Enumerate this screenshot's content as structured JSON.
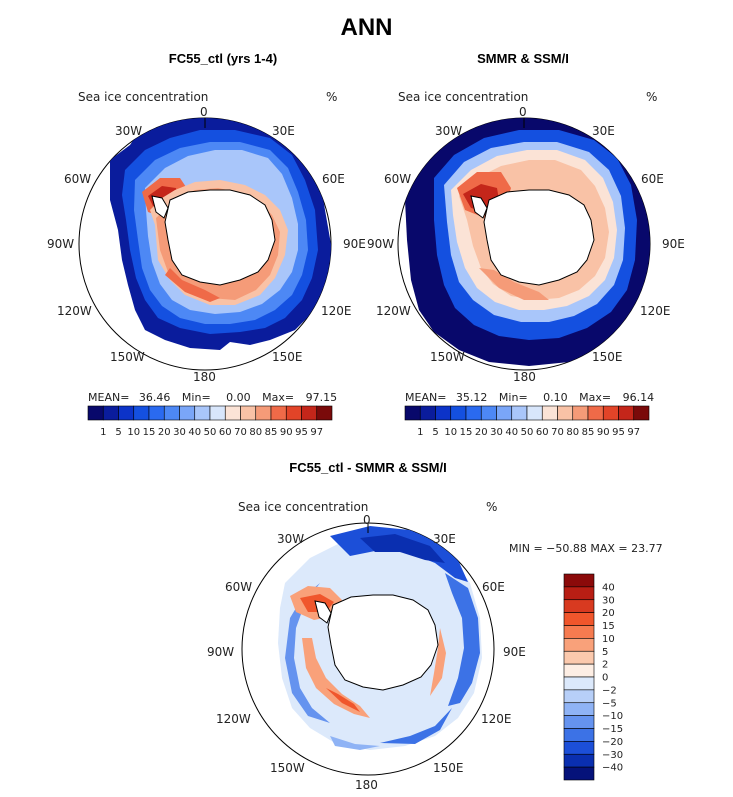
{
  "title": "ANN",
  "panels": [
    {
      "title": "FC55_ctl (yrs 1-4)",
      "variable": "Sea ice concentration",
      "units": "%",
      "stats": {
        "mean_label": "MEAN=",
        "mean": "36.46",
        "min_label": "Min=",
        "min": "0.00",
        "max_label": "Max=",
        "max": "97.15"
      }
    },
    {
      "title": "SMMR & SSM/I",
      "variable": "Sea ice concentration",
      "units": "%",
      "stats": {
        "mean_label": "MEAN=",
        "mean": "35.12",
        "min_label": "Min=",
        "min": "0.10",
        "max_label": "Max=",
        "max": "96.14"
      }
    },
    {
      "title": "FC55_ctl - SMMR & SSM/I",
      "variable": "Sea ice concentration",
      "units": "%",
      "stats_line": "MIN = −50.88 MAX =  23.77"
    }
  ],
  "lon_labels": [
    "0",
    "30E",
    "60E",
    "90E",
    "120E",
    "150E",
    "180",
    "150W",
    "120W",
    "90W",
    "60W",
    "30W"
  ],
  "colorbar_abs": {
    "ticks": [
      "1",
      "5",
      "10",
      "15",
      "20",
      "30",
      "40",
      "50",
      "60",
      "70",
      "80",
      "85",
      "90",
      "95",
      "97"
    ],
    "colors": [
      "#08086b",
      "#0a1c9c",
      "#0c33c8",
      "#1450e0",
      "#2a6af0",
      "#4d88f5",
      "#7aa6f8",
      "#a9c6fa",
      "#d8e6fb",
      "#fbe3d6",
      "#f9c2a6",
      "#f59b78",
      "#ef6a48",
      "#e24428",
      "#c4261a",
      "#7a0a0a"
    ]
  },
  "colorbar_diff": {
    "ticks": [
      "40",
      "30",
      "20",
      "15",
      "10",
      "5",
      "2",
      "0",
      "−2",
      "−5",
      "−10",
      "−15",
      "−20",
      "−30",
      "−40"
    ],
    "colors": [
      "#8b0a0a",
      "#b81e14",
      "#d83a20",
      "#f0562c",
      "#f67b50",
      "#f9a17a",
      "#fbc9ad",
      "#fdeee4",
      "#dce9fb",
      "#b7cff8",
      "#8fb3f5",
      "#6593ef",
      "#3c72e6",
      "#1c4fd8",
      "#0a2fb0",
      "#05127a"
    ]
  },
  "chart_data": [
    {
      "type": "heatmap",
      "title": "FC55_ctl (yrs 1-4)",
      "variable": "Sea ice concentration",
      "units": "%",
      "projection": "south polar stereographic",
      "mean": 36.46,
      "min": 0.0,
      "max": 97.15,
      "levels": [
        1,
        5,
        10,
        15,
        20,
        30,
        40,
        50,
        60,
        70,
        80,
        85,
        90,
        95,
        97
      ]
    },
    {
      "type": "heatmap",
      "title": "SMMR & SSM/I",
      "variable": "Sea ice concentration",
      "units": "%",
      "projection": "south polar stereographic",
      "mean": 35.12,
      "min": 0.1,
      "max": 96.14,
      "levels": [
        1,
        5,
        10,
        15,
        20,
        30,
        40,
        50,
        60,
        70,
        80,
        85,
        90,
        95,
        97
      ]
    },
    {
      "type": "heatmap",
      "title": "FC55_ctl - SMMR & SSM/I",
      "variable": "Sea ice concentration",
      "units": "%",
      "projection": "south polar stereographic",
      "min": -50.88,
      "max": 23.77,
      "levels": [
        -40,
        -30,
        -20,
        -15,
        -10,
        -5,
        -2,
        0,
        2,
        5,
        10,
        15,
        20,
        30,
        40
      ]
    }
  ]
}
